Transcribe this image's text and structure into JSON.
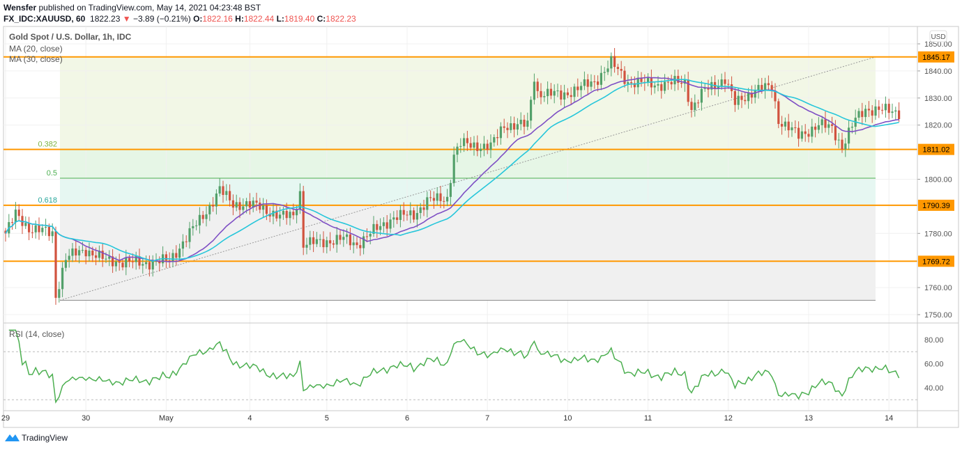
{
  "header": {
    "author": "Wensfer",
    "published": "published on TradingView.com, May 14, 2021 04:23:48 BST",
    "symbol": "FX_IDC:XAUUSD, 60",
    "last": "1822.23",
    "change": "−3.89 (−0.21%)",
    "o_label": "O:",
    "o": "1822.16",
    "h_label": "H:",
    "h": "1822.44",
    "l_label": "L:",
    "l": "1819.40",
    "c_label": "C:",
    "c": "1822.23"
  },
  "legend": {
    "title": "Gold Spot / U.S. Dollar, 1h, IDC",
    "ma20": "MA (20, close)",
    "ma30": "MA (30, close)",
    "rsi": "RSI (14, close)"
  },
  "footer": {
    "brand": "TradingView"
  },
  "colors": {
    "up": "#53a06a",
    "down": "#d1533f",
    "ma20": "#7e4fc4",
    "ma30": "#26c6da",
    "level": "#ff9800",
    "rsi": "#4caf50"
  },
  "chart_data": {
    "type": "candlestick",
    "currency": "USD",
    "ylim": [
      1747,
      1856
    ],
    "yticks": [
      "1850.00",
      "1840.00",
      "1830.00",
      "1820.00",
      "1800.00",
      "1780.00",
      "1760.00",
      "1750.00"
    ],
    "ytick_values": [
      1850,
      1840,
      1830,
      1820,
      1800,
      1780,
      1760,
      1750
    ],
    "levels": [
      {
        "value": 1845.17,
        "label": "1845.17"
      },
      {
        "value": 1811.02,
        "label": "1811.02"
      },
      {
        "value": 1790.39,
        "label": "1790.39"
      },
      {
        "value": 1769.72,
        "label": "1769.72"
      }
    ],
    "fib": [
      {
        "ratio": "0.382",
        "value": 1811.02
      },
      {
        "ratio": "0.5",
        "value": 1800.4
      },
      {
        "ratio": "0.618",
        "value": 1790.39
      }
    ],
    "fib_range": [
      1755.3,
      1845.17
    ],
    "xticks": [
      {
        "label": "29",
        "bar": 0
      },
      {
        "label": "30",
        "bar": 24
      },
      {
        "label": "May",
        "bar": 48
      },
      {
        "label": "4",
        "bar": 73
      },
      {
        "label": "5",
        "bar": 96
      },
      {
        "label": "6",
        "bar": 120
      },
      {
        "label": "7",
        "bar": 144
      },
      {
        "label": "10",
        "bar": 168
      },
      {
        "label": "11",
        "bar": 192
      },
      {
        "label": "12",
        "bar": 216
      },
      {
        "label": "13",
        "bar": 240
      },
      {
        "label": "14",
        "bar": 264
      }
    ],
    "close_path": [
      [
        0,
        1780
      ],
      [
        3,
        1787
      ],
      [
        7,
        1782
      ],
      [
        14,
        1780
      ],
      [
        15,
        1757
      ],
      [
        18,
        1771
      ],
      [
        24,
        1774
      ],
      [
        30,
        1770
      ],
      [
        41,
        1769
      ],
      [
        49,
        1770
      ],
      [
        55,
        1780
      ],
      [
        61,
        1790
      ],
      [
        64,
        1796
      ],
      [
        68,
        1791
      ],
      [
        76,
        1790
      ],
      [
        82,
        1786
      ],
      [
        86,
        1787
      ],
      [
        88,
        1795
      ],
      [
        89,
        1776
      ],
      [
        95,
        1777
      ],
      [
        101,
        1778
      ],
      [
        105,
        1776
      ],
      [
        109,
        1780
      ],
      [
        116,
        1786
      ],
      [
        122,
        1787
      ],
      [
        126,
        1792
      ],
      [
        132,
        1793
      ],
      [
        134,
        1809
      ],
      [
        136,
        1813
      ],
      [
        145,
        1812
      ],
      [
        149,
        1820
      ],
      [
        156,
        1820
      ],
      [
        158,
        1838
      ],
      [
        159,
        1832
      ],
      [
        166,
        1831
      ],
      [
        176,
        1836
      ],
      [
        181,
        1843
      ],
      [
        186,
        1836
      ],
      [
        195,
        1835
      ],
      [
        203,
        1836
      ],
      [
        205,
        1826
      ],
      [
        209,
        1833
      ],
      [
        215,
        1837
      ],
      [
        218,
        1828
      ],
      [
        224,
        1833
      ],
      [
        229,
        1834
      ],
      [
        231,
        1822
      ],
      [
        237,
        1816
      ],
      [
        243,
        1820
      ],
      [
        247,
        1819
      ],
      [
        250,
        1812
      ],
      [
        254,
        1822
      ],
      [
        257,
        1826
      ],
      [
        266,
        1825
      ],
      [
        267,
        1822.23
      ]
    ],
    "rsi": {
      "ylim": [
        20,
        90
      ],
      "ticks": [
        "80.00",
        "60.00",
        "40.00"
      ],
      "tick_values": [
        80,
        60,
        40
      ],
      "bands": [
        70,
        30
      ]
    }
  }
}
